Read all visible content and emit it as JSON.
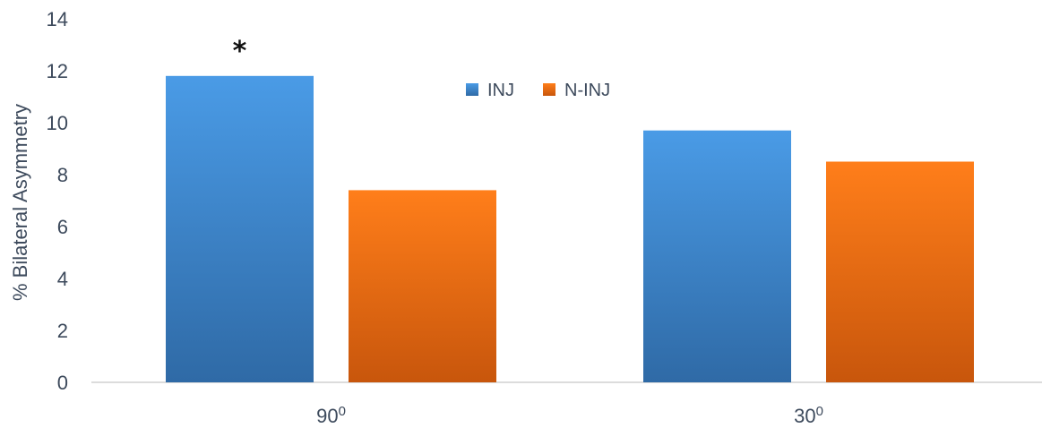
{
  "chart_data": {
    "type": "bar",
    "title": "",
    "xlabel": "",
    "ylabel": "% Bilateral Asymmetry",
    "ylim": [
      0,
      14
    ],
    "yticks": [
      0,
      2,
      4,
      6,
      8,
      10,
      12,
      14
    ],
    "categories": [
      {
        "base": "90",
        "sup": "0"
      },
      {
        "base": "30",
        "sup": "0"
      }
    ],
    "series": [
      {
        "name": "INJ",
        "values": [
          11.8,
          9.7
        ],
        "color": "#3a7cc0",
        "color_top": "#4a9be6",
        "color_bottom": "#2f6aa6"
      },
      {
        "name": "N-INJ",
        "values": [
          7.4,
          8.5
        ],
        "color": "#e96c10",
        "color_top": "#ff7e1a",
        "color_bottom": "#c8560c"
      }
    ],
    "annotations": [
      {
        "text": "*",
        "series": "INJ",
        "category_index": 0
      }
    ],
    "legend": {
      "position": "top-center"
    },
    "grid": false
  }
}
